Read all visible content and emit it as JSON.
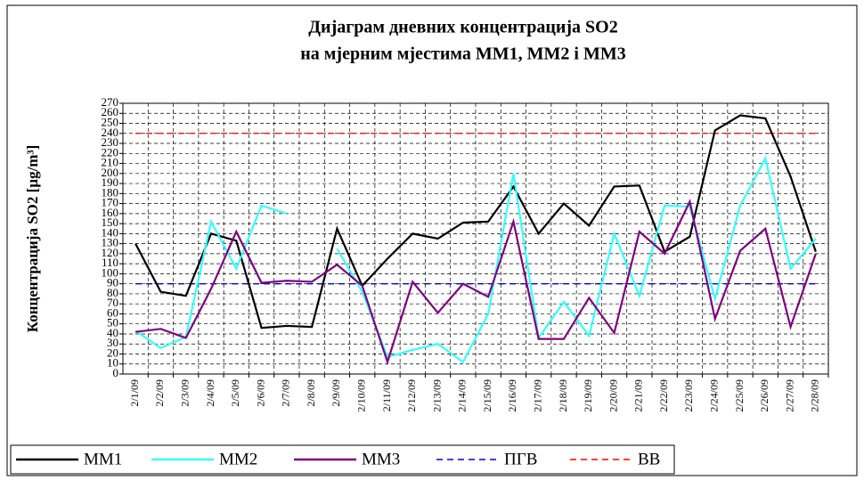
{
  "chart_data": {
    "type": "line",
    "title": [
      "Дијаграм дневних концентрација SO2",
      "на мјерним мјестима ММ1, ММ2 і ММ3"
    ],
    "y_label": "Концентрација SO2 [µg/m³]",
    "categories": [
      "2/1/09",
      "2/2/09",
      "2/3/09",
      "2/4/09",
      "2/5/09",
      "2/6/09",
      "2/7/09",
      "2/8/09",
      "2/9/09",
      "2/10/09",
      "2/11/09",
      "2/12/09",
      "2/13/09",
      "2/14/09",
      "2/15/09",
      "2/16/09",
      "2/17/09",
      "2/18/09",
      "2/19/09",
      "2/20/09",
      "2/21/09",
      "2/22/09",
      "2/23/09",
      "2/24/09",
      "2/25/09",
      "2/26/09",
      "2/27/09",
      "2/28/09"
    ],
    "series": [
      {
        "name": "ММ1",
        "color": "#000000",
        "values": [
          130,
          82,
          78,
          140,
          133,
          46,
          48,
          47,
          145,
          88,
          115,
          140,
          135,
          151,
          152,
          187,
          140,
          170,
          148,
          187,
          188,
          122,
          137,
          243,
          258,
          255,
          197,
          122
        ]
      },
      {
        "name": "ММ2",
        "color": "#33ffff",
        "values": [
          43,
          26,
          37,
          152,
          105,
          168,
          160,
          null,
          125,
          82,
          17,
          24,
          30,
          12,
          60,
          200,
          36,
          72,
          38,
          140,
          78,
          168,
          167,
          75,
          168,
          215,
          105,
          135
        ]
      },
      {
        "name": "ММ3",
        "color": "#800080",
        "values": [
          42,
          45,
          36,
          85,
          142,
          91,
          93,
          92,
          109,
          88,
          12,
          92,
          61,
          90,
          77,
          152,
          35,
          35,
          76,
          41,
          142,
          120,
          172,
          55,
          123,
          145,
          47,
          120
        ]
      },
      {
        "name": "ПГВ",
        "color": "#0000cc",
        "dashed": true,
        "values": [
          90,
          90,
          90,
          90,
          90,
          90,
          90,
          90,
          90,
          90,
          90,
          90,
          90,
          90,
          90,
          90,
          90,
          90,
          90,
          90,
          90,
          90,
          90,
          90,
          90,
          90,
          90,
          90
        ]
      },
      {
        "name": "ВВ",
        "color": "#ff0000",
        "dashed": true,
        "values": [
          240,
          240,
          240,
          240,
          240,
          240,
          240,
          240,
          240,
          240,
          240,
          240,
          240,
          240,
          240,
          240,
          240,
          240,
          240,
          240,
          240,
          240,
          240,
          240,
          240,
          240,
          240,
          240
        ]
      }
    ],
    "ylim": [
      0,
      270
    ],
    "yticks": [
      0,
      10,
      20,
      30,
      40,
      50,
      60,
      70,
      80,
      90,
      100,
      110,
      120,
      130,
      140,
      150,
      160,
      170,
      180,
      190,
      200,
      210,
      220,
      230,
      240,
      250,
      260,
      270
    ],
    "grid": true
  }
}
